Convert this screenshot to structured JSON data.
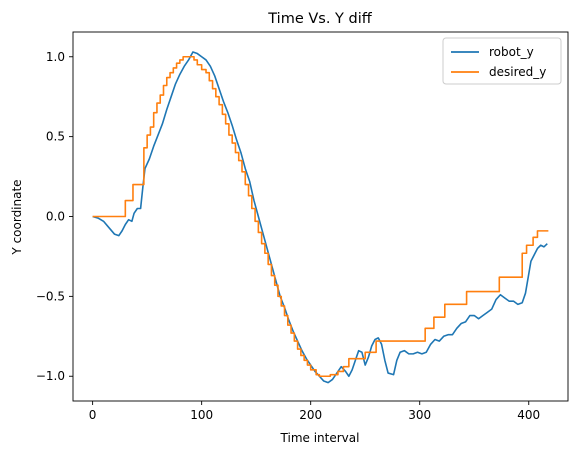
{
  "chart_data": {
    "type": "line",
    "title": "Time Vs. Y diff",
    "xlabel": "Time interval",
    "ylabel": "Y coordinate",
    "xlim": [
      -18,
      436
    ],
    "ylim": [
      -1.155,
      1.155
    ],
    "xticks": [
      0,
      100,
      200,
      300,
      400
    ],
    "yticks": [
      -1.0,
      -0.5,
      0.0,
      0.5,
      1.0
    ],
    "xtick_labels": [
      "0",
      "100",
      "200",
      "300",
      "400"
    ],
    "ytick_labels": [
      "−1.0",
      "−0.5",
      "0.0",
      "0.5",
      "1.0"
    ],
    "grid": false,
    "legend_position": "top-right",
    "series": [
      {
        "name": "robot_y",
        "color": "#1f77b4",
        "step": false,
        "points": [
          [
            0,
            0.0
          ],
          [
            5,
            -0.01
          ],
          [
            10,
            -0.03
          ],
          [
            15,
            -0.07
          ],
          [
            20,
            -0.11
          ],
          [
            24,
            -0.12
          ],
          [
            27,
            -0.09
          ],
          [
            30,
            -0.05
          ],
          [
            33,
            -0.02
          ],
          [
            36,
            -0.03
          ],
          [
            38,
            0.02
          ],
          [
            41,
            0.05
          ],
          [
            44,
            0.05
          ],
          [
            46,
            0.18
          ],
          [
            48,
            0.3
          ],
          [
            52,
            0.36
          ],
          [
            56,
            0.44
          ],
          [
            60,
            0.51
          ],
          [
            64,
            0.58
          ],
          [
            68,
            0.67
          ],
          [
            72,
            0.75
          ],
          [
            76,
            0.83
          ],
          [
            80,
            0.89
          ],
          [
            84,
            0.94
          ],
          [
            88,
            0.98
          ],
          [
            92,
            1.03
          ],
          [
            96,
            1.02
          ],
          [
            100,
            1.0
          ],
          [
            104,
            0.98
          ],
          [
            108,
            0.94
          ],
          [
            112,
            0.88
          ],
          [
            116,
            0.8
          ],
          [
            120,
            0.72
          ],
          [
            124,
            0.65
          ],
          [
            128,
            0.57
          ],
          [
            132,
            0.48
          ],
          [
            136,
            0.4
          ],
          [
            140,
            0.3
          ],
          [
            144,
            0.22
          ],
          [
            148,
            0.1
          ],
          [
            152,
            0.0
          ],
          [
            156,
            -0.1
          ],
          [
            160,
            -0.2
          ],
          [
            164,
            -0.3
          ],
          [
            168,
            -0.4
          ],
          [
            172,
            -0.5
          ],
          [
            176,
            -0.57
          ],
          [
            180,
            -0.65
          ],
          [
            184,
            -0.72
          ],
          [
            188,
            -0.78
          ],
          [
            192,
            -0.84
          ],
          [
            196,
            -0.89
          ],
          [
            200,
            -0.93
          ],
          [
            204,
            -0.97
          ],
          [
            208,
            -1.0
          ],
          [
            212,
            -1.03
          ],
          [
            216,
            -1.04
          ],
          [
            220,
            -1.02
          ],
          [
            224,
            -0.98
          ],
          [
            228,
            -0.94
          ],
          [
            232,
            -0.97
          ],
          [
            235,
            -1.0
          ],
          [
            238,
            -0.96
          ],
          [
            241,
            -0.9
          ],
          [
            244,
            -0.84
          ],
          [
            247,
            -0.85
          ],
          [
            250,
            -0.93
          ],
          [
            253,
            -0.88
          ],
          [
            256,
            -0.81
          ],
          [
            259,
            -0.77
          ],
          [
            262,
            -0.76
          ],
          [
            265,
            -0.8
          ],
          [
            268,
            -0.9
          ],
          [
            271,
            -0.98
          ],
          [
            276,
            -0.99
          ],
          [
            279,
            -0.9
          ],
          [
            282,
            -0.85
          ],
          [
            286,
            -0.84
          ],
          [
            290,
            -0.86
          ],
          [
            294,
            -0.86
          ],
          [
            298,
            -0.85
          ],
          [
            302,
            -0.86
          ],
          [
            306,
            -0.85
          ],
          [
            310,
            -0.8
          ],
          [
            314,
            -0.77
          ],
          [
            318,
            -0.78
          ],
          [
            322,
            -0.75
          ],
          [
            326,
            -0.74
          ],
          [
            330,
            -0.74
          ],
          [
            334,
            -0.7
          ],
          [
            338,
            -0.67
          ],
          [
            342,
            -0.66
          ],
          [
            346,
            -0.62
          ],
          [
            350,
            -0.62
          ],
          [
            354,
            -0.64
          ],
          [
            358,
            -0.62
          ],
          [
            362,
            -0.6
          ],
          [
            366,
            -0.58
          ],
          [
            370,
            -0.52
          ],
          [
            374,
            -0.49
          ],
          [
            378,
            -0.51
          ],
          [
            382,
            -0.53
          ],
          [
            386,
            -0.53
          ],
          [
            390,
            -0.55
          ],
          [
            394,
            -0.54
          ],
          [
            397,
            -0.48
          ],
          [
            400,
            -0.36
          ],
          [
            402,
            -0.28
          ],
          [
            405,
            -0.24
          ],
          [
            408,
            -0.2
          ],
          [
            411,
            -0.18
          ],
          [
            414,
            -0.19
          ],
          [
            417,
            -0.17
          ]
        ]
      },
      {
        "name": "desired_y",
        "color": "#ff7f0e",
        "step": true,
        "points": [
          [
            0,
            0.0
          ],
          [
            30,
            0.0
          ],
          [
            30,
            0.1
          ],
          [
            37,
            0.1
          ],
          [
            37,
            0.2
          ],
          [
            47,
            0.2
          ],
          [
            47,
            0.43
          ],
          [
            50,
            0.43
          ],
          [
            50,
            0.51
          ],
          [
            53,
            0.51
          ],
          [
            53,
            0.56
          ],
          [
            56,
            0.56
          ],
          [
            56,
            0.65
          ],
          [
            59,
            0.65
          ],
          [
            59,
            0.71
          ],
          [
            62,
            0.71
          ],
          [
            62,
            0.76
          ],
          [
            65,
            0.76
          ],
          [
            65,
            0.82
          ],
          [
            68,
            0.82
          ],
          [
            68,
            0.87
          ],
          [
            71,
            0.87
          ],
          [
            71,
            0.9
          ],
          [
            74,
            0.9
          ],
          [
            74,
            0.93
          ],
          [
            77,
            0.93
          ],
          [
            77,
            0.96
          ],
          [
            80,
            0.96
          ],
          [
            80,
            0.98
          ],
          [
            83,
            0.98
          ],
          [
            83,
            1.0
          ],
          [
            93,
            1.0
          ],
          [
            93,
            0.98
          ],
          [
            96,
            0.98
          ],
          [
            96,
            0.95
          ],
          [
            100,
            0.95
          ],
          [
            100,
            0.92
          ],
          [
            104,
            0.92
          ],
          [
            104,
            0.9
          ],
          [
            107,
            0.9
          ],
          [
            107,
            0.85
          ],
          [
            110,
            0.85
          ],
          [
            110,
            0.8
          ],
          [
            113,
            0.8
          ],
          [
            113,
            0.75
          ],
          [
            116,
            0.75
          ],
          [
            116,
            0.7
          ],
          [
            119,
            0.7
          ],
          [
            119,
            0.64
          ],
          [
            122,
            0.64
          ],
          [
            122,
            0.58
          ],
          [
            125,
            0.58
          ],
          [
            125,
            0.51
          ],
          [
            128,
            0.51
          ],
          [
            128,
            0.46
          ],
          [
            131,
            0.46
          ],
          [
            131,
            0.4
          ],
          [
            134,
            0.4
          ],
          [
            134,
            0.35
          ],
          [
            137,
            0.35
          ],
          [
            137,
            0.28
          ],
          [
            140,
            0.28
          ],
          [
            140,
            0.2
          ],
          [
            143,
            0.2
          ],
          [
            143,
            0.13
          ],
          [
            146,
            0.13
          ],
          [
            146,
            0.05
          ],
          [
            149,
            0.05
          ],
          [
            149,
            -0.03
          ],
          [
            152,
            -0.03
          ],
          [
            152,
            -0.1
          ],
          [
            155,
            -0.1
          ],
          [
            155,
            -0.17
          ],
          [
            158,
            -0.17
          ],
          [
            158,
            -0.23
          ],
          [
            161,
            -0.23
          ],
          [
            161,
            -0.3
          ],
          [
            164,
            -0.3
          ],
          [
            164,
            -0.37
          ],
          [
            167,
            -0.37
          ],
          [
            167,
            -0.43
          ],
          [
            170,
            -0.43
          ],
          [
            170,
            -0.5
          ],
          [
            173,
            -0.5
          ],
          [
            173,
            -0.56
          ],
          [
            176,
            -0.56
          ],
          [
            176,
            -0.62
          ],
          [
            179,
            -0.62
          ],
          [
            179,
            -0.68
          ],
          [
            182,
            -0.68
          ],
          [
            182,
            -0.73
          ],
          [
            185,
            -0.73
          ],
          [
            185,
            -0.78
          ],
          [
            188,
            -0.78
          ],
          [
            188,
            -0.83
          ],
          [
            191,
            -0.83
          ],
          [
            191,
            -0.87
          ],
          [
            194,
            -0.87
          ],
          [
            194,
            -0.9
          ],
          [
            197,
            -0.9
          ],
          [
            197,
            -0.93
          ],
          [
            200,
            -0.93
          ],
          [
            200,
            -0.96
          ],
          [
            205,
            -0.96
          ],
          [
            205,
            -0.99
          ],
          [
            208,
            -0.99
          ],
          [
            208,
            -1.0
          ],
          [
            218,
            -1.0
          ],
          [
            218,
            -0.99
          ],
          [
            225,
            -0.99
          ],
          [
            225,
            -0.97
          ],
          [
            230,
            -0.97
          ],
          [
            230,
            -0.94
          ],
          [
            235,
            -0.94
          ],
          [
            235,
            -0.89
          ],
          [
            250,
            -0.89
          ],
          [
            250,
            -0.85
          ],
          [
            260,
            -0.85
          ],
          [
            260,
            -0.78
          ],
          [
            305,
            -0.78
          ],
          [
            305,
            -0.7
          ],
          [
            313,
            -0.7
          ],
          [
            313,
            -0.63
          ],
          [
            323,
            -0.63
          ],
          [
            323,
            -0.55
          ],
          [
            343,
            -0.55
          ],
          [
            343,
            -0.47
          ],
          [
            373,
            -0.47
          ],
          [
            373,
            -0.38
          ],
          [
            394,
            -0.38
          ],
          [
            394,
            -0.23
          ],
          [
            398,
            -0.23
          ],
          [
            398,
            -0.18
          ],
          [
            404,
            -0.18
          ],
          [
            404,
            -0.13
          ],
          [
            408,
            -0.13
          ],
          [
            408,
            -0.09
          ],
          [
            418,
            -0.09
          ]
        ]
      }
    ]
  }
}
